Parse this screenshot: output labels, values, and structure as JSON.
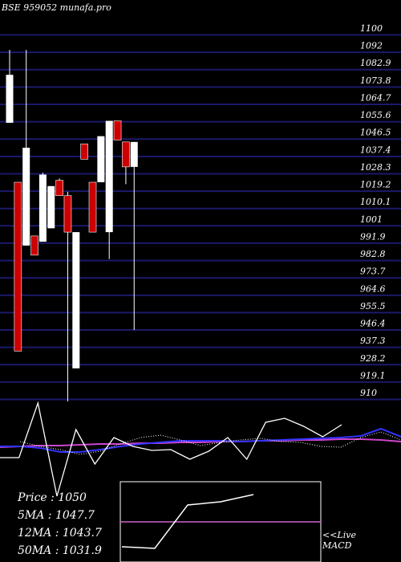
{
  "chart_data": {
    "type": "candlestick",
    "title": "BSE 959052 munafa.pro",
    "y_ticks": [
      1100,
      1092,
      1082.9,
      1073.8,
      1064.7,
      1055.6,
      1046.5,
      1037.4,
      1028.3,
      1019.2,
      1010.1,
      1001,
      991.9,
      982.8,
      973.7,
      964.6,
      955.5,
      946.4,
      937.3,
      928.2,
      919.1,
      910
    ],
    "y_tick_labels": [
      "1100",
      "1092",
      "1082.9",
      "1073.8",
      "1064.7",
      "1055.6",
      "1046.5",
      "1037.4",
      "1028.3",
      "1019.2",
      "1010.1",
      "1001",
      "991.9",
      "982.8",
      "973.7",
      "964.6",
      "955.5",
      "946.4",
      "937.3",
      "928.2",
      "919.1",
      "910"
    ],
    "ylim": [
      903,
      1101
    ],
    "candles": [
      {
        "open": 1054,
        "close": 1079,
        "high": 1092,
        "low": 1054,
        "color": "white"
      },
      {
        "open": 1023,
        "close": 935,
        "high": 1023,
        "low": 935,
        "color": "red"
      },
      {
        "open": 990,
        "close": 1041,
        "high": 1092,
        "low": 990,
        "color": "white"
      },
      {
        "open": 995,
        "close": 985,
        "high": 995,
        "low": 985,
        "color": "red"
      },
      {
        "open": 992,
        "close": 1027,
        "high": 1028,
        "low": 992,
        "color": "white"
      },
      {
        "open": 999,
        "close": 1021,
        "high": 1021,
        "low": 999,
        "color": "white"
      },
      {
        "open": 1024,
        "close": 1016,
        "high": 1025,
        "low": 1016,
        "color": "red"
      },
      {
        "open": 1016,
        "close": 997,
        "high": 1018,
        "low": 905,
        "color": "red"
      },
      {
        "open": 997,
        "close": 926,
        "high": 997,
        "low": 926,
        "color": "white"
      },
      {
        "open": 1043,
        "close": 1035,
        "high": 1043,
        "low": 1035,
        "color": "red"
      },
      {
        "open": 1023,
        "close": 997,
        "high": 1023,
        "low": 997,
        "color": "red"
      },
      {
        "open": 1023,
        "close": 1047,
        "high": 1047,
        "low": 1023,
        "color": "white"
      },
      {
        "open": 997,
        "close": 1055,
        "high": 1055,
        "low": 983,
        "color": "white"
      },
      {
        "open": 1055,
        "close": 1045,
        "high": 1055,
        "low": 1045,
        "color": "red"
      },
      {
        "open": 1044,
        "close": 1031,
        "high": 1044,
        "low": 1022,
        "color": "red"
      },
      {
        "open": 1031,
        "close": 1044,
        "high": 1044,
        "low": 946,
        "color": "white"
      }
    ],
    "oscillator": {
      "line_white": [
        570,
        570,
        502,
        618,
        535,
        578,
        545,
        556,
        561,
        560,
        572,
        562,
        545,
        572,
        526,
        521,
        531,
        544,
        529
      ],
      "line_dotted": [
        550,
        556,
        560,
        566,
        562,
        553,
        545,
        542,
        548,
        555,
        551,
        548,
        546,
        550,
        551,
        556,
        557,
        545,
        538,
        548
      ],
      "line_blue": [
        556,
        556,
        558,
        563,
        563,
        560,
        556,
        553,
        551,
        549,
        549,
        549,
        550,
        549,
        548,
        547,
        546,
        545,
        543,
        534,
        544
      ],
      "line_purple": [
        557,
        556,
        555,
        555,
        554,
        553,
        553,
        552,
        552,
        551,
        551,
        550,
        550,
        549,
        549,
        548,
        548,
        547,
        547,
        548,
        550
      ]
    },
    "macd": {
      "line": [
        681,
        683,
        629,
        625,
        616
      ],
      "signal_y": 650
    }
  },
  "stats": {
    "price": "Price  : 1050",
    "ma5": "5MA : 1047.7",
    "ma12": "12MA : 1043.7",
    "ma50": "50MA : 1031.9"
  },
  "macd_label_1": "<<Live",
  "macd_label_2": "MACD",
  "colors": {
    "background": "#000000",
    "grid": "#1a1a6b",
    "up": "#ffffff",
    "down": "#cc0000"
  }
}
